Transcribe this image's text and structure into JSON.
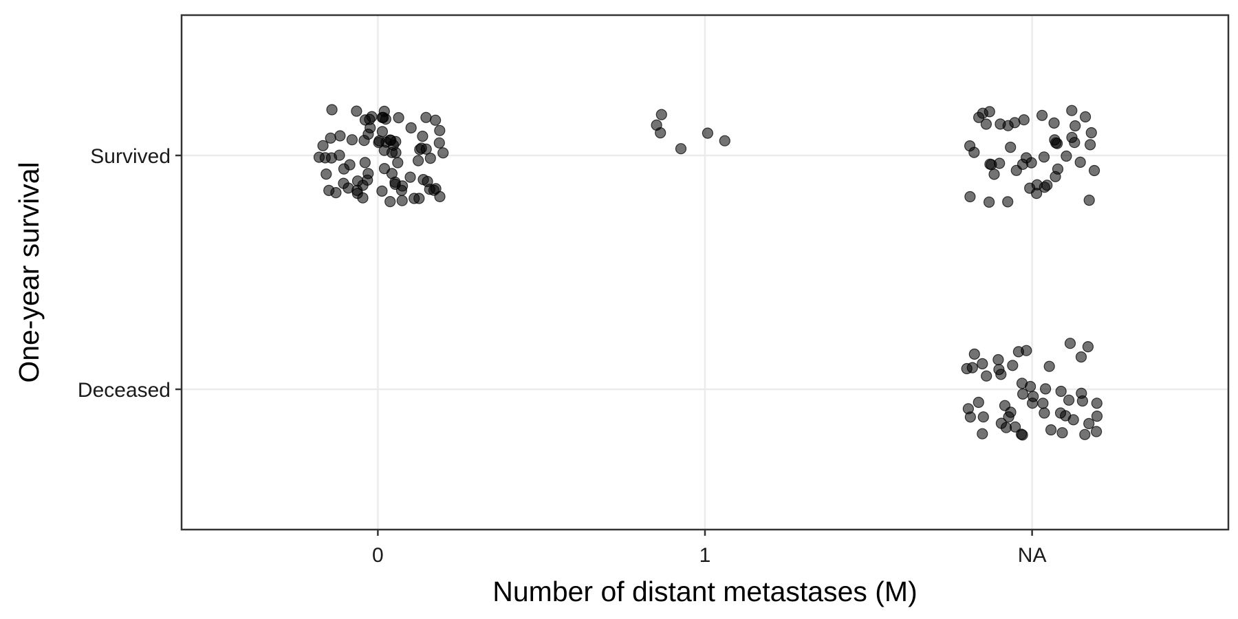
{
  "chart_data": {
    "type": "scatter",
    "title": "",
    "xlabel": "Number of distant metastases (M)",
    "ylabel": "One-year survival",
    "x_categories": [
      "0",
      "1",
      "NA"
    ],
    "y_categories": [
      "Deceased",
      "Survived"
    ],
    "grid": true,
    "legend": "none",
    "point_color": "#000000",
    "point_alpha": 0.55,
    "counts": [
      {
        "x": "0",
        "y": "Survived",
        "n": 78
      },
      {
        "x": "0",
        "y": "Deceased",
        "n": 0
      },
      {
        "x": "1",
        "y": "Survived",
        "n": 6
      },
      {
        "x": "1",
        "y": "Deceased",
        "n": 0
      },
      {
        "x": "NA",
        "y": "Survived",
        "n": 46
      },
      {
        "x": "NA",
        "y": "Deceased",
        "n": 50
      }
    ]
  }
}
